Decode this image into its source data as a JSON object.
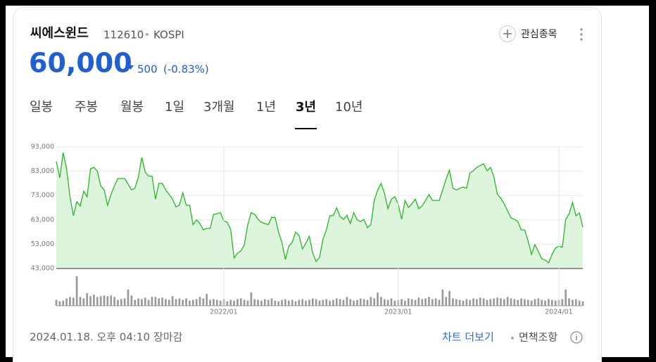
{
  "header": {
    "name": "씨에스윈드",
    "code": "112610",
    "market": "KOSPI",
    "watch": "관심종목"
  },
  "quote": {
    "price": "60,000",
    "change": "500",
    "change_pct": "(-0.83%)"
  },
  "tabs": [
    "일봉",
    "주봉",
    "월봉",
    "1일",
    "3개월",
    "1년",
    "3년",
    "10년"
  ],
  "active_tab": 6,
  "footer": {
    "datetime": "2024.01.18. 오후 04:10",
    "status": "장마감",
    "more": "차트 더보기",
    "disclaimer": "면책조항"
  },
  "chart_data": {
    "type": "line",
    "color": "#2cb52c",
    "area_color": "#dcf5dc",
    "volume_color": "#999999",
    "ylim": [
      43000,
      93000
    ],
    "yticks": [
      {
        "value": 93000,
        "label": "93,000"
      },
      {
        "value": 83000,
        "label": "83,000"
      },
      {
        "value": 73000,
        "label": "73,000"
      },
      {
        "value": 63000,
        "label": "63,000"
      },
      {
        "value": 53000,
        "label": "53,000"
      },
      {
        "value": 43000,
        "label": "43,000"
      }
    ],
    "grid": true,
    "categories": [
      null,
      null,
      null,
      null,
      null,
      null,
      null,
      null,
      null,
      null,
      null,
      null,
      null,
      null,
      null,
      null,
      null,
      null,
      null,
      null,
      null,
      null,
      null,
      null,
      null,
      null,
      null,
      null,
      null,
      null,
      null,
      null,
      null,
      null,
      null,
      null,
      null,
      null,
      null,
      null,
      null,
      null,
      null,
      null,
      null,
      null,
      null,
      null,
      null,
      "2022/01",
      null,
      null,
      null,
      null,
      null,
      null,
      null,
      null,
      null,
      null,
      null,
      null,
      null,
      null,
      null,
      null,
      null,
      null,
      null,
      null,
      null,
      null,
      null,
      null,
      null,
      null,
      null,
      null,
      null,
      null,
      null,
      null,
      null,
      null,
      null,
      null,
      null,
      null,
      null,
      null,
      null,
      null,
      null,
      null,
      null,
      null,
      null,
      null,
      null,
      null,
      "2023/01",
      null,
      null,
      null,
      null,
      null,
      null,
      null,
      null,
      null,
      null,
      null,
      null,
      null,
      null,
      null,
      null,
      null,
      null,
      null,
      null,
      null,
      null,
      null,
      null,
      null,
      null,
      null,
      null,
      null,
      null,
      null,
      null,
      null,
      null,
      null,
      null,
      null,
      null,
      null,
      null,
      null,
      null,
      null,
      null,
      null,
      null,
      "2024/01",
      null,
      null,
      null,
      null,
      null,
      null,
      null
    ],
    "values": [
      87000,
      80300,
      90700,
      84000,
      72500,
      64700,
      70500,
      68700,
      74800,
      72500,
      84000,
      84600,
      83000,
      77000,
      75300,
      69000,
      73400,
      77000,
      80000,
      80000,
      80000,
      77700,
      75300,
      76000,
      80600,
      88700,
      82600,
      81000,
      81000,
      71500,
      78000,
      78000,
      75300,
      73400,
      71500,
      68400,
      69000,
      74200,
      69000,
      69000,
      61000,
      63000,
      61500,
      58900,
      59500,
      59500,
      65300,
      65500,
      66000,
      62600,
      62000,
      59000,
      47300,
      49300,
      50200,
      52800,
      61000,
      66000,
      65300,
      63200,
      62000,
      61500,
      61000,
      64000,
      64000,
      58000,
      53700,
      46700,
      52200,
      53700,
      58000,
      56600,
      51000,
      53400,
      56300,
      49300,
      45900,
      47600,
      55100,
      58900,
      64700,
      64700,
      67900,
      64400,
      63200,
      64900,
      61500,
      66000,
      63000,
      62300,
      63200,
      59800,
      61000,
      71000,
      75300,
      78000,
      73800,
      67600,
      71500,
      72500,
      69600,
      63200,
      71000,
      68100,
      69600,
      71500,
      67600,
      68700,
      71000,
      73400,
      71000,
      71000,
      71000,
      75300,
      79700,
      83500,
      76000,
      75300,
      76000,
      76500,
      76000,
      82300,
      83200,
      84600,
      85300,
      86100,
      83200,
      84600,
      80600,
      73600,
      71900,
      69600,
      66700,
      63800,
      63200,
      62300,
      58900,
      58900,
      54300,
      48800,
      52800,
      49900,
      47000,
      46500,
      45300,
      48800,
      51400,
      52200,
      51700,
      63200,
      65500,
      70200,
      64700,
      65900,
      60000
    ],
    "volume": [
      8,
      6,
      7,
      10,
      12,
      11,
      40,
      12,
      10,
      17,
      13,
      15,
      12,
      13,
      14,
      13,
      14,
      12,
      8,
      9,
      10,
      22,
      14,
      8,
      10,
      9,
      11,
      8,
      12,
      12,
      10,
      11,
      9,
      8,
      13,
      9,
      10,
      8,
      10,
      7,
      8,
      9,
      12,
      10,
      16,
      8,
      9,
      8,
      7,
      9,
      6,
      8,
      7,
      9,
      10,
      8,
      7,
      18,
      9,
      8,
      7,
      9,
      8,
      10,
      7,
      6,
      8,
      9,
      7,
      8,
      6,
      8,
      9,
      7,
      8,
      10,
      9,
      7,
      8,
      9,
      7,
      8,
      10,
      9,
      8,
      12,
      9,
      7,
      8,
      10,
      9,
      8,
      12,
      10,
      18,
      12,
      9,
      8,
      10,
      7,
      8,
      9,
      7,
      10,
      9,
      8,
      11,
      9,
      10,
      12,
      9,
      10,
      8,
      22,
      12,
      20,
      10,
      9,
      8,
      7,
      9,
      8,
      10,
      9,
      11,
      10,
      8,
      9,
      10,
      11,
      10,
      9,
      12,
      10,
      9,
      8,
      10,
      9,
      8,
      7,
      9,
      10,
      8,
      7,
      9,
      8,
      7,
      8,
      9,
      22,
      10,
      8,
      9,
      7,
      6
    ]
  }
}
